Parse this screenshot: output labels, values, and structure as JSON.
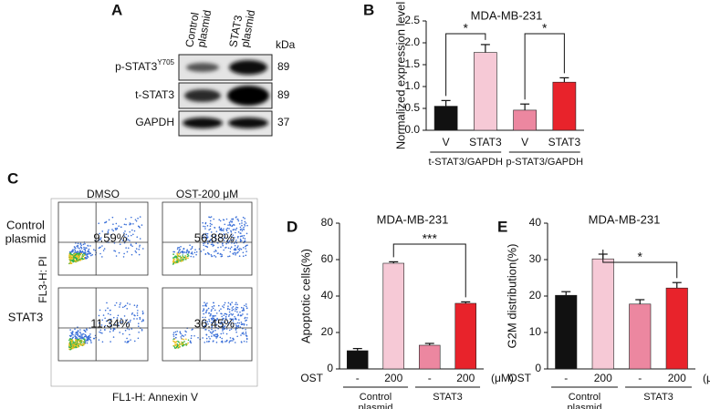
{
  "blot": {
    "panel": "A",
    "lanes": [
      [
        "Control",
        "plasmid"
      ],
      [
        "STAT3",
        "plasmid"
      ]
    ],
    "unit": "kDa",
    "rows": [
      {
        "label": "p-STAT3",
        "superscript": "Y705",
        "kda": 89
      },
      {
        "label": "t-STAT3",
        "kda": 89
      },
      {
        "label": "GAPDH",
        "kda": 37
      }
    ]
  },
  "flow": {
    "panel": "C",
    "columns": [
      "DMSO",
      "OST-200 μM"
    ],
    "rows": [
      [
        "Control",
        "plasmid"
      ],
      [
        "STAT3"
      ]
    ],
    "y_label": "FL3-H: PI",
    "x_label": "FL1-H: Annexin V",
    "percentages": [
      [
        "9.59%",
        "56.88%"
      ],
      [
        "11.34%",
        "36.45%"
      ]
    ]
  },
  "chart_data": [
    {
      "type": "bar",
      "panel": "B",
      "title": "MDA-MB-231",
      "y_label": "Normalized expression level",
      "categories": [
        "V",
        "STAT3",
        "V",
        "STAT3"
      ],
      "values": [
        0.55,
        1.78,
        0.46,
        1.1
      ],
      "errors": [
        0.13,
        0.18,
        0.14,
        0.1
      ],
      "colors": [
        "#111111",
        "#f6c9d6",
        "#ec87a0",
        "#e8232b"
      ],
      "ylim": [
        0,
        2.5
      ],
      "yticks": [
        {
          "value": 0,
          "label": "0.0"
        },
        {
          "value": 0.5,
          "label": "0.5"
        },
        {
          "value": 1,
          "label": "1.0"
        },
        {
          "value": 1.5,
          "label": "1.5"
        },
        {
          "value": 2,
          "label": "2.0"
        },
        {
          "value": 2.5,
          "label": "2.5"
        }
      ],
      "groups": [
        {
          "label": [
            "t-STAT3/GAPDH"
          ],
          "span": [
            0,
            1
          ]
        },
        {
          "label": [
            "p-STAT3/GAPDH"
          ],
          "span": [
            2,
            3
          ]
        }
      ],
      "significance": [
        {
          "label": "*",
          "span": [
            0,
            1
          ]
        },
        {
          "label": "*",
          "span": [
            2,
            3
          ]
        }
      ]
    },
    {
      "type": "bar",
      "panel": "D",
      "title": "MDA-MB-231",
      "y_label": "Apoptotic cells(%)",
      "x_prefix": "OST",
      "x_unit": "(μM)",
      "categories": [
        "-",
        "200",
        "-",
        "200"
      ],
      "values": [
        10,
        58,
        13,
        36
      ],
      "errors": [
        1.2,
        0.8,
        1,
        0.8
      ],
      "colors": [
        "#111111",
        "#f6c9d6",
        "#ec87a0",
        "#e8232b"
      ],
      "ylim": [
        0,
        80
      ],
      "yticks": [
        0,
        20,
        40,
        60,
        80
      ],
      "groups": [
        {
          "label": [
            "Control",
            "plasmid"
          ],
          "span": [
            0,
            1
          ]
        },
        {
          "label": [
            "STAT3"
          ],
          "span": [
            2,
            3
          ]
        }
      ],
      "significance": [
        {
          "label": "***",
          "span": [
            1,
            3
          ]
        }
      ]
    },
    {
      "type": "bar",
      "panel": "E",
      "title": "MDA-MB-231",
      "y_label": "G2M distribution(%)",
      "x_prefix": "OST",
      "x_unit": "(μM)",
      "categories": [
        "-",
        "200",
        "-",
        "200"
      ],
      "values": [
        20.2,
        30.2,
        17.8,
        22.2
      ],
      "errors": [
        1,
        1.3,
        1.2,
        1.5
      ],
      "colors": [
        "#111111",
        "#f6c9d6",
        "#ec87a0",
        "#e8232b"
      ],
      "ylim": [
        0,
        40
      ],
      "yticks": [
        0,
        10,
        20,
        30,
        40
      ],
      "groups": [
        {
          "label": [
            "Control",
            "plasmid"
          ],
          "span": [
            0,
            1
          ]
        },
        {
          "label": [
            "STAT3"
          ],
          "span": [
            2,
            3
          ]
        }
      ],
      "significance": [
        {
          "label": "*",
          "span": [
            1,
            3
          ]
        }
      ]
    }
  ]
}
